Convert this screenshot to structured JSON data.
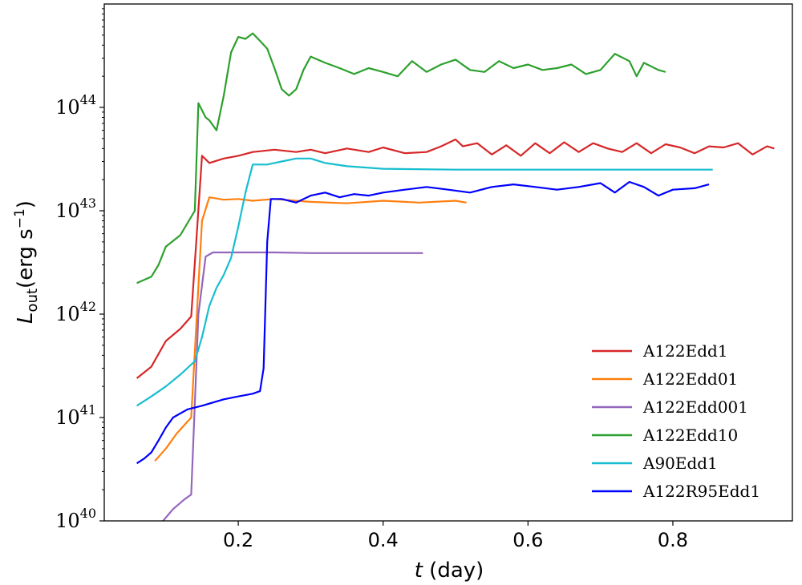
{
  "chart_data": {
    "type": "line",
    "xlabel_var": "t",
    "xlabel_unit": " (day)",
    "ylabel_var": "L",
    "ylabel_sub": "out",
    "ylabel_unit": "(erg s",
    "ylabel_unit_sup": "−1",
    "ylabel_unit_end": ")",
    "xlim": [
      0.015,
      0.965
    ],
    "ylim": [
      1e+40,
      1e+45
    ],
    "yscale": "log",
    "xticks": [
      0.2,
      0.4,
      0.6,
      0.8
    ],
    "xtick_labels": [
      "0.2",
      "0.4",
      "0.6",
      "0.8"
    ],
    "yticks": [
      40,
      41,
      42,
      43,
      44
    ],
    "ytick_base": "10",
    "ytick_exponents": [
      "40",
      "41",
      "42",
      "43",
      "44"
    ],
    "legend_position": "lower right",
    "series": [
      {
        "name": "A122Edd1",
        "color": "#d62728",
        "points": [
          [
            0.06,
            2.4e+41
          ],
          [
            0.08,
            3.1e+41
          ],
          [
            0.1,
            5.5e+41
          ],
          [
            0.12,
            7.2e+41
          ],
          [
            0.135,
            9.5e+41
          ],
          [
            0.142,
            5e+42
          ],
          [
            0.15,
            3.4e+43
          ],
          [
            0.16,
            2.9e+43
          ],
          [
            0.18,
            3.2e+43
          ],
          [
            0.2,
            3.4e+43
          ],
          [
            0.22,
            3.7e+43
          ],
          [
            0.25,
            3.9e+43
          ],
          [
            0.28,
            3.7e+43
          ],
          [
            0.3,
            3.9e+43
          ],
          [
            0.32,
            3.6e+43
          ],
          [
            0.35,
            4e+43
          ],
          [
            0.38,
            3.7e+43
          ],
          [
            0.4,
            4.1e+43
          ],
          [
            0.43,
            3.6e+43
          ],
          [
            0.46,
            3.7e+43
          ],
          [
            0.48,
            4.2e+43
          ],
          [
            0.5,
            4.9e+43
          ],
          [
            0.51,
            4.2e+43
          ],
          [
            0.53,
            4.5e+43
          ],
          [
            0.55,
            3.5e+43
          ],
          [
            0.57,
            4.3e+43
          ],
          [
            0.59,
            3.4e+43
          ],
          [
            0.61,
            4.5e+43
          ],
          [
            0.63,
            3.6e+43
          ],
          [
            0.65,
            4.6e+43
          ],
          [
            0.67,
            3.7e+43
          ],
          [
            0.69,
            4.5e+43
          ],
          [
            0.71,
            4e+43
          ],
          [
            0.73,
            3.7e+43
          ],
          [
            0.75,
            4.5e+43
          ],
          [
            0.77,
            3.6e+43
          ],
          [
            0.79,
            4.4e+43
          ],
          [
            0.81,
            4.1e+43
          ],
          [
            0.83,
            3.6e+43
          ],
          [
            0.85,
            4.2e+43
          ],
          [
            0.87,
            4.1e+43
          ],
          [
            0.89,
            4.5e+43
          ],
          [
            0.91,
            3.5e+43
          ],
          [
            0.93,
            4.2e+43
          ],
          [
            0.94,
            4e+43
          ]
        ]
      },
      {
        "name": "A122Edd01",
        "color": "#ff7f0e",
        "points": [
          [
            0.085,
            3.8e+40
          ],
          [
            0.1,
            5e+40
          ],
          [
            0.115,
            7e+40
          ],
          [
            0.135,
            1e+41
          ],
          [
            0.15,
            8e+42
          ],
          [
            0.16,
            1.35e+43
          ],
          [
            0.18,
            1.28e+43
          ],
          [
            0.2,
            1.3e+43
          ],
          [
            0.22,
            1.25e+43
          ],
          [
            0.25,
            1.3e+43
          ],
          [
            0.3,
            1.22e+43
          ],
          [
            0.35,
            1.18e+43
          ],
          [
            0.4,
            1.25e+43
          ],
          [
            0.45,
            1.2e+43
          ],
          [
            0.5,
            1.25e+43
          ],
          [
            0.515,
            1.2e+43
          ]
        ]
      },
      {
        "name": "A122Edd001",
        "color": "#9467bd",
        "points": [
          [
            0.095,
            9.8e+39
          ],
          [
            0.11,
            1.3e+40
          ],
          [
            0.125,
            1.6e+40
          ],
          [
            0.135,
            1.8e+40
          ],
          [
            0.145,
            1e+42
          ],
          [
            0.155,
            3.6e+42
          ],
          [
            0.165,
            3.95e+42
          ],
          [
            0.2,
            3.95e+42
          ],
          [
            0.25,
            3.95e+42
          ],
          [
            0.3,
            3.9e+42
          ],
          [
            0.35,
            3.9e+42
          ],
          [
            0.4,
            3.9e+42
          ],
          [
            0.455,
            3.9e+42
          ]
        ]
      },
      {
        "name": "A122Edd10",
        "color": "#2ca02c",
        "points": [
          [
            0.06,
            2e+42
          ],
          [
            0.08,
            2.3e+42
          ],
          [
            0.09,
            3e+42
          ],
          [
            0.1,
            4.5e+42
          ],
          [
            0.12,
            5.8e+42
          ],
          [
            0.14,
            1e+43
          ],
          [
            0.145,
            1.1e+44
          ],
          [
            0.155,
            8e+43
          ],
          [
            0.16,
            7.5e+43
          ],
          [
            0.17,
            6e+43
          ],
          [
            0.18,
            1.3e+44
          ],
          [
            0.19,
            3.4e+44
          ],
          [
            0.2,
            4.8e+44
          ],
          [
            0.21,
            4.6e+44
          ],
          [
            0.22,
            5.2e+44
          ],
          [
            0.23,
            4.4e+44
          ],
          [
            0.24,
            3.7e+44
          ],
          [
            0.25,
            2.4e+44
          ],
          [
            0.26,
            1.5e+44
          ],
          [
            0.27,
            1.3e+44
          ],
          [
            0.28,
            1.5e+44
          ],
          [
            0.29,
            2.3e+44
          ],
          [
            0.3,
            3.1e+44
          ],
          [
            0.32,
            2.7e+44
          ],
          [
            0.34,
            2.4e+44
          ],
          [
            0.36,
            2.1e+44
          ],
          [
            0.38,
            2.4e+44
          ],
          [
            0.4,
            2.2e+44
          ],
          [
            0.42,
            2e+44
          ],
          [
            0.44,
            2.8e+44
          ],
          [
            0.46,
            2.2e+44
          ],
          [
            0.48,
            2.6e+44
          ],
          [
            0.5,
            2.9e+44
          ],
          [
            0.52,
            2.3e+44
          ],
          [
            0.54,
            2.2e+44
          ],
          [
            0.56,
            2.8e+44
          ],
          [
            0.58,
            2.4e+44
          ],
          [
            0.6,
            2.6e+44
          ],
          [
            0.62,
            2.3e+44
          ],
          [
            0.64,
            2.4e+44
          ],
          [
            0.66,
            2.6e+44
          ],
          [
            0.68,
            2.1e+44
          ],
          [
            0.7,
            2.3e+44
          ],
          [
            0.72,
            3.3e+44
          ],
          [
            0.74,
            2.8e+44
          ],
          [
            0.75,
            2e+44
          ],
          [
            0.76,
            2.7e+44
          ],
          [
            0.78,
            2.3e+44
          ],
          [
            0.79,
            2.2e+44
          ]
        ]
      },
      {
        "name": "A90Edd1",
        "color": "#17becf",
        "points": [
          [
            0.06,
            1.3e+41
          ],
          [
            0.08,
            1.6e+41
          ],
          [
            0.1,
            2e+41
          ],
          [
            0.12,
            2.6e+41
          ],
          [
            0.14,
            3.5e+41
          ],
          [
            0.15,
            6e+41
          ],
          [
            0.16,
            1.2e+42
          ],
          [
            0.17,
            1.8e+42
          ],
          [
            0.18,
            2.4e+42
          ],
          [
            0.19,
            3.5e+42
          ],
          [
            0.2,
            7e+42
          ],
          [
            0.21,
            1.5e+43
          ],
          [
            0.22,
            2.8e+43
          ],
          [
            0.24,
            2.8e+43
          ],
          [
            0.26,
            3e+43
          ],
          [
            0.28,
            3.2e+43
          ],
          [
            0.3,
            3.2e+43
          ],
          [
            0.32,
            2.9e+43
          ],
          [
            0.35,
            2.7e+43
          ],
          [
            0.4,
            2.55e+43
          ],
          [
            0.5,
            2.5e+43
          ],
          [
            0.6,
            2.5e+43
          ],
          [
            0.7,
            2.5e+43
          ],
          [
            0.8,
            2.5e+43
          ],
          [
            0.855,
            2.5e+43
          ]
        ]
      },
      {
        "name": "A122R95Edd1",
        "color": "#0000ff",
        "points": [
          [
            0.06,
            3.6e+40
          ],
          [
            0.07,
            4e+40
          ],
          [
            0.08,
            4.6e+40
          ],
          [
            0.09,
            6e+40
          ],
          [
            0.1,
            8e+40
          ],
          [
            0.11,
            1e+41
          ],
          [
            0.13,
            1.2e+41
          ],
          [
            0.15,
            1.3e+41
          ],
          [
            0.18,
            1.5e+41
          ],
          [
            0.2,
            1.6e+41
          ],
          [
            0.22,
            1.7e+41
          ],
          [
            0.23,
            1.8e+41
          ],
          [
            0.235,
            3e+41
          ],
          [
            0.24,
            5e+42
          ],
          [
            0.245,
            1.3e+43
          ],
          [
            0.26,
            1.3e+43
          ],
          [
            0.28,
            1.2e+43
          ],
          [
            0.3,
            1.4e+43
          ],
          [
            0.32,
            1.5e+43
          ],
          [
            0.34,
            1.35e+43
          ],
          [
            0.36,
            1.45e+43
          ],
          [
            0.38,
            1.4e+43
          ],
          [
            0.4,
            1.5e+43
          ],
          [
            0.43,
            1.6e+43
          ],
          [
            0.46,
            1.7e+43
          ],
          [
            0.49,
            1.6e+43
          ],
          [
            0.52,
            1.5e+43
          ],
          [
            0.55,
            1.7e+43
          ],
          [
            0.58,
            1.8e+43
          ],
          [
            0.61,
            1.7e+43
          ],
          [
            0.64,
            1.6e+43
          ],
          [
            0.67,
            1.7e+43
          ],
          [
            0.7,
            1.85e+43
          ],
          [
            0.72,
            1.5e+43
          ],
          [
            0.74,
            1.9e+43
          ],
          [
            0.76,
            1.7e+43
          ],
          [
            0.78,
            1.4e+43
          ],
          [
            0.8,
            1.6e+43
          ],
          [
            0.83,
            1.65e+43
          ],
          [
            0.85,
            1.8e+43
          ]
        ]
      }
    ]
  }
}
